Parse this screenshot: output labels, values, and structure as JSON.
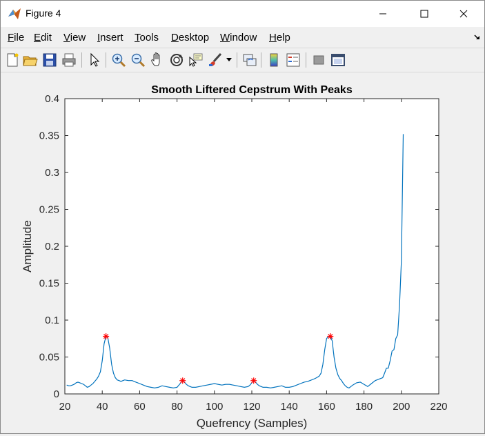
{
  "window": {
    "title": "Figure 4",
    "icon": "matlab-logo-icon",
    "controls": [
      "minimize-icon",
      "maximize-icon",
      "close-icon"
    ]
  },
  "menu": {
    "items": [
      {
        "label": "File",
        "u": "F",
        "rest": "ile"
      },
      {
        "label": "Edit",
        "u": "E",
        "rest": "dit"
      },
      {
        "label": "View",
        "u": "V",
        "rest": "iew"
      },
      {
        "label": "Insert",
        "u": "I",
        "rest": "nsert"
      },
      {
        "label": "Tools",
        "u": "T",
        "rest": "ools"
      },
      {
        "label": "Desktop",
        "u": "D",
        "rest": "esktop"
      },
      {
        "label": "Window",
        "u": "W",
        "rest": "indow"
      },
      {
        "label": "Help",
        "u": "H",
        "rest": "elp"
      }
    ]
  },
  "toolbar": {
    "buttons": [
      "new-figure-icon",
      "open-file-icon",
      "save-icon",
      "print-icon",
      "pointer-icon",
      "zoom-in-icon",
      "zoom-out-icon",
      "pan-icon",
      "rotate-3d-icon",
      "data-cursor-icon",
      "brush-icon",
      "brush-dropdown-icon",
      "link-plot-icon",
      "colorbar-icon",
      "legend-icon",
      "hide-plot-tools-icon",
      "show-plot-tools-icon"
    ]
  },
  "chart_data": {
    "type": "line",
    "title": "Smooth Liftered Cepstrum With Peaks",
    "xlabel": "Quefrency (Samples)",
    "ylabel": "Amplitude",
    "xlim": [
      20,
      220
    ],
    "ylim": [
      0,
      0.4
    ],
    "xticks": [
      20,
      40,
      60,
      80,
      100,
      120,
      140,
      160,
      180,
      200,
      220
    ],
    "yticks": [
      0,
      0.05,
      0.1,
      0.15,
      0.2,
      0.25,
      0.3,
      0.35,
      0.4
    ],
    "line_color": "#0072bd",
    "marker_color": "#ff0000",
    "x": [
      21,
      22,
      23,
      24,
      25,
      26,
      27,
      28,
      29,
      30,
      31,
      32,
      33,
      34,
      35,
      36,
      37,
      38,
      39,
      40,
      41,
      42,
      43,
      44,
      45,
      46,
      47,
      48,
      49,
      50,
      52,
      54,
      56,
      58,
      60,
      62,
      64,
      66,
      68,
      70,
      72,
      74,
      76,
      78,
      80,
      81,
      82,
      83,
      84,
      85,
      86,
      87,
      88,
      90,
      92,
      94,
      96,
      98,
      100,
      102,
      104,
      106,
      108,
      110,
      112,
      114,
      116,
      118,
      119,
      120,
      121,
      122,
      123,
      124,
      125,
      126,
      128,
      130,
      132,
      134,
      136,
      138,
      140,
      142,
      144,
      146,
      148,
      150,
      152,
      154,
      156,
      157,
      158,
      159,
      160,
      161,
      162,
      163,
      164,
      165,
      166,
      167,
      168,
      169,
      170,
      171,
      172,
      173,
      174,
      176,
      178,
      180,
      182,
      184,
      186,
      188,
      190,
      191,
      192,
      193,
      194,
      195,
      196,
      197,
      198,
      199,
      200,
      201
    ],
    "y": [
      0.012,
      0.011,
      0.011,
      0.012,
      0.013,
      0.015,
      0.016,
      0.015,
      0.014,
      0.013,
      0.011,
      0.009,
      0.01,
      0.012,
      0.014,
      0.017,
      0.02,
      0.024,
      0.03,
      0.045,
      0.068,
      0.078,
      0.076,
      0.062,
      0.04,
      0.028,
      0.022,
      0.019,
      0.018,
      0.017,
      0.019,
      0.018,
      0.018,
      0.016,
      0.014,
      0.012,
      0.01,
      0.009,
      0.008,
      0.009,
      0.011,
      0.01,
      0.009,
      0.008,
      0.009,
      0.012,
      0.015,
      0.018,
      0.016,
      0.013,
      0.011,
      0.01,
      0.009,
      0.009,
      0.01,
      0.011,
      0.012,
      0.013,
      0.014,
      0.013,
      0.012,
      0.013,
      0.013,
      0.012,
      0.011,
      0.01,
      0.009,
      0.01,
      0.012,
      0.015,
      0.018,
      0.016,
      0.013,
      0.011,
      0.01,
      0.009,
      0.009,
      0.008,
      0.009,
      0.01,
      0.011,
      0.009,
      0.009,
      0.01,
      0.012,
      0.014,
      0.016,
      0.017,
      0.019,
      0.021,
      0.024,
      0.028,
      0.04,
      0.06,
      0.075,
      0.078,
      0.078,
      0.072,
      0.05,
      0.035,
      0.026,
      0.021,
      0.018,
      0.014,
      0.011,
      0.009,
      0.008,
      0.01,
      0.012,
      0.015,
      0.016,
      0.013,
      0.01,
      0.014,
      0.018,
      0.02,
      0.022,
      0.028,
      0.035,
      0.035,
      0.045,
      0.058,
      0.06,
      0.075,
      0.08,
      0.12,
      0.18,
      0.352
    ],
    "peaks": {
      "x": [
        42,
        83,
        121,
        162
      ],
      "y": [
        0.078,
        0.018,
        0.018,
        0.078
      ]
    }
  }
}
